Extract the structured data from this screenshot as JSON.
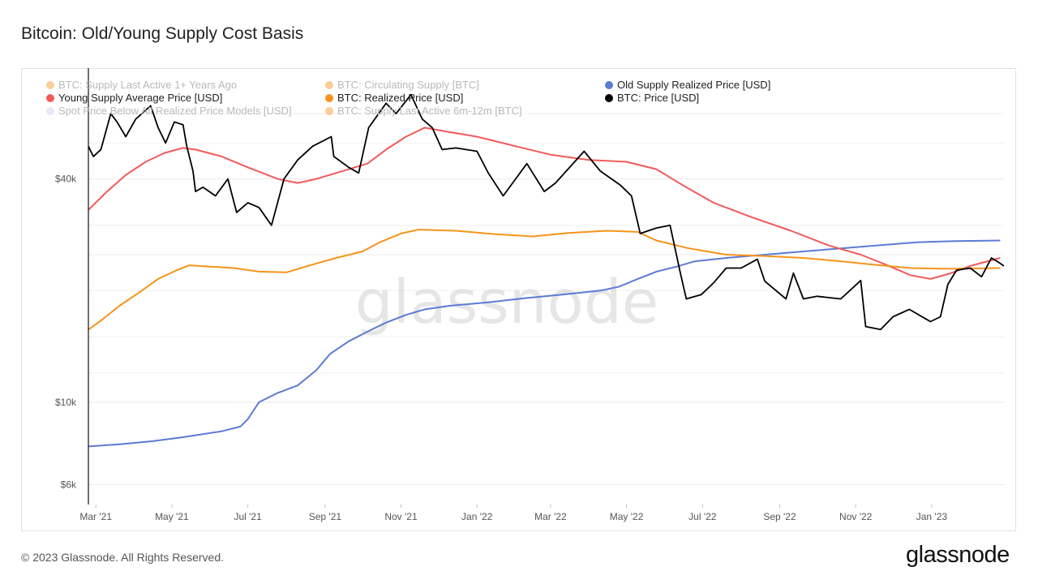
{
  "title": "Bitcoin: Old/Young Supply Cost Basis",
  "footer": {
    "copyright": "© 2023 Glassnode. All Rights Reserved.",
    "brand": "glassnode"
  },
  "watermark": "glassnode",
  "legend": [
    {
      "label": "BTC: Supply Last Active 1+ Years Ago",
      "color": "#f7931a",
      "active": false
    },
    {
      "label": "BTC: Circulating Supply [BTC]",
      "color": "#f7931a",
      "active": false
    },
    {
      "label": "Old Supply Realized Price [USD]",
      "color": "#5b7bd5",
      "active": true
    },
    {
      "label": "Young Supply Average Price [USD]",
      "color": "#f25a5a",
      "active": true
    },
    {
      "label": "BTC: Realized Price [USD]",
      "color": "#f7931a",
      "active": true
    },
    {
      "label": "BTC: Price [USD]",
      "color": "#000000",
      "active": true
    },
    {
      "label": "Spot Price Below All Realized Price Models [USD]",
      "color": "#d7c8f3",
      "active": false
    },
    {
      "label": "BTC: Supply Last Active 6m-12m [BTC]",
      "color": "#f7931a",
      "active": false
    }
  ],
  "chart_data": {
    "type": "line",
    "title": "Bitcoin: Old/Young Supply Cost Basis",
    "yscale": "log",
    "ylim": [
      5300,
      78000
    ],
    "xlim": [
      "2021-02-23",
      "2023-02-28"
    ],
    "yticks": [
      {
        "value": 6000,
        "label": "$6k"
      },
      {
        "value": 10000,
        "label": "$10k"
      },
      {
        "value": 40000,
        "label": "$40k"
      }
    ],
    "xticks": [
      {
        "date": "2021-03-01",
        "label": "Mar '21"
      },
      {
        "date": "2021-05-01",
        "label": "May '21"
      },
      {
        "date": "2021-07-01",
        "label": "Jul '21"
      },
      {
        "date": "2021-09-01",
        "label": "Sep '21"
      },
      {
        "date": "2021-11-01",
        "label": "Nov '21"
      },
      {
        "date": "2022-01-01",
        "label": "Jan '22"
      },
      {
        "date": "2022-03-01",
        "label": "Mar '22"
      },
      {
        "date": "2022-05-01",
        "label": "May '22"
      },
      {
        "date": "2022-07-01",
        "label": "Jul '22"
      },
      {
        "date": "2022-09-01",
        "label": "Sep '22"
      },
      {
        "date": "2022-11-01",
        "label": "Nov '22"
      },
      {
        "date": "2023-01-01",
        "label": "Jan '23"
      }
    ],
    "series": [
      {
        "name": "Old Supply Realized Price [USD]",
        "color": "#5b7bd5",
        "points": [
          [
            "2021-02-23",
            7600
          ],
          [
            "2021-03-20",
            7700
          ],
          [
            "2021-04-15",
            7850
          ],
          [
            "2021-05-10",
            8050
          ],
          [
            "2021-06-10",
            8350
          ],
          [
            "2021-06-25",
            8600
          ],
          [
            "2021-07-01",
            9000
          ],
          [
            "2021-07-10",
            10000
          ],
          [
            "2021-07-25",
            10600
          ],
          [
            "2021-08-10",
            11100
          ],
          [
            "2021-08-25",
            12200
          ],
          [
            "2021-09-05",
            13500
          ],
          [
            "2021-09-20",
            14600
          ],
          [
            "2021-10-05",
            15500
          ],
          [
            "2021-10-20",
            16400
          ],
          [
            "2021-11-05",
            17200
          ],
          [
            "2021-11-20",
            17800
          ],
          [
            "2021-12-10",
            18200
          ],
          [
            "2022-01-10",
            18600
          ],
          [
            "2022-02-10",
            19100
          ],
          [
            "2022-03-10",
            19500
          ],
          [
            "2022-04-10",
            20000
          ],
          [
            "2022-04-25",
            20500
          ],
          [
            "2022-05-10",
            21500
          ],
          [
            "2022-05-25",
            22500
          ],
          [
            "2022-06-10",
            23200
          ],
          [
            "2022-06-25",
            24000
          ],
          [
            "2022-07-20",
            24500
          ],
          [
            "2022-08-20",
            25000
          ],
          [
            "2022-09-20",
            25500
          ],
          [
            "2022-10-20",
            26000
          ],
          [
            "2022-11-20",
            26500
          ],
          [
            "2022-12-20",
            27000
          ],
          [
            "2023-01-20",
            27200
          ],
          [
            "2023-02-25",
            27300
          ]
        ]
      },
      {
        "name": "Young Supply Average Price [USD]",
        "color": "#f25a5a",
        "points": [
          [
            "2021-02-23",
            33000
          ],
          [
            "2021-03-10",
            37000
          ],
          [
            "2021-03-25",
            41000
          ],
          [
            "2021-04-10",
            44500
          ],
          [
            "2021-04-25",
            47000
          ],
          [
            "2021-05-10",
            48500
          ],
          [
            "2021-05-20",
            48000
          ],
          [
            "2021-06-10",
            46000
          ],
          [
            "2021-07-01",
            43000
          ],
          [
            "2021-07-25",
            40000
          ],
          [
            "2021-08-10",
            39000
          ],
          [
            "2021-08-25",
            40000
          ],
          [
            "2021-09-15",
            42000
          ],
          [
            "2021-10-05",
            44000
          ],
          [
            "2021-10-20",
            48000
          ],
          [
            "2021-11-05",
            52000
          ],
          [
            "2021-11-20",
            55000
          ],
          [
            "2021-12-10",
            53500
          ],
          [
            "2022-01-01",
            52000
          ],
          [
            "2022-02-01",
            49000
          ],
          [
            "2022-03-01",
            46500
          ],
          [
            "2022-04-01",
            45000
          ],
          [
            "2022-05-01",
            44500
          ],
          [
            "2022-05-25",
            42500
          ],
          [
            "2022-06-15",
            38500
          ],
          [
            "2022-07-10",
            34500
          ],
          [
            "2022-08-10",
            31500
          ],
          [
            "2022-09-10",
            29000
          ],
          [
            "2022-10-10",
            26500
          ],
          [
            "2022-11-05",
            25000
          ],
          [
            "2022-11-25",
            23500
          ],
          [
            "2022-12-15",
            22000
          ],
          [
            "2022-12-31",
            21500
          ],
          [
            "2023-01-15",
            22200
          ],
          [
            "2023-02-01",
            23300
          ],
          [
            "2023-02-25",
            24500
          ]
        ]
      },
      {
        "name": "BTC: Realized Price [USD]",
        "color": "#f7931a",
        "points": [
          [
            "2021-02-23",
            15700
          ],
          [
            "2021-03-05",
            16600
          ],
          [
            "2021-03-20",
            18200
          ],
          [
            "2021-04-05",
            19800
          ],
          [
            "2021-04-20",
            21500
          ],
          [
            "2021-05-05",
            22700
          ],
          [
            "2021-05-15",
            23400
          ],
          [
            "2021-06-01",
            23200
          ],
          [
            "2021-06-20",
            23000
          ],
          [
            "2021-07-10",
            22500
          ],
          [
            "2021-08-01",
            22400
          ],
          [
            "2021-08-20",
            23400
          ],
          [
            "2021-09-10",
            24500
          ],
          [
            "2021-10-01",
            25500
          ],
          [
            "2021-10-15",
            27000
          ],
          [
            "2021-11-01",
            28500
          ],
          [
            "2021-11-15",
            29200
          ],
          [
            "2021-12-15",
            29000
          ],
          [
            "2022-01-15",
            28400
          ],
          [
            "2022-02-15",
            28000
          ],
          [
            "2022-03-15",
            28600
          ],
          [
            "2022-04-15",
            29000
          ],
          [
            "2022-05-10",
            28800
          ],
          [
            "2022-05-25",
            27300
          ],
          [
            "2022-06-20",
            26000
          ],
          [
            "2022-07-20",
            25000
          ],
          [
            "2022-08-20",
            24800
          ],
          [
            "2022-09-20",
            24500
          ],
          [
            "2022-10-20",
            24000
          ],
          [
            "2022-11-15",
            23500
          ],
          [
            "2022-12-15",
            23000
          ],
          [
            "2023-01-15",
            22900
          ],
          [
            "2023-02-25",
            23000
          ]
        ]
      },
      {
        "name": "BTC: Price [USD]",
        "color": "#000000",
        "points": [
          [
            "2021-02-23",
            49000
          ],
          [
            "2021-02-27",
            46000
          ],
          [
            "2021-03-05",
            48000
          ],
          [
            "2021-03-13",
            60000
          ],
          [
            "2021-03-18",
            57000
          ],
          [
            "2021-03-25",
            52000
          ],
          [
            "2021-04-02",
            58000
          ],
          [
            "2021-04-14",
            63000
          ],
          [
            "2021-04-20",
            55000
          ],
          [
            "2021-04-26",
            50000
          ],
          [
            "2021-05-03",
            57000
          ],
          [
            "2021-05-10",
            56000
          ],
          [
            "2021-05-13",
            49000
          ],
          [
            "2021-05-18",
            42000
          ],
          [
            "2021-05-20",
            37000
          ],
          [
            "2021-05-26",
            38000
          ],
          [
            "2021-06-05",
            36000
          ],
          [
            "2021-06-15",
            40000
          ],
          [
            "2021-06-22",
            32500
          ],
          [
            "2021-07-01",
            34500
          ],
          [
            "2021-07-10",
            33500
          ],
          [
            "2021-07-20",
            30000
          ],
          [
            "2021-07-30",
            40000
          ],
          [
            "2021-08-10",
            45000
          ],
          [
            "2021-08-22",
            49000
          ],
          [
            "2021-09-06",
            52000
          ],
          [
            "2021-09-08",
            46000
          ],
          [
            "2021-09-20",
            43000
          ],
          [
            "2021-09-28",
            41500
          ],
          [
            "2021-10-06",
            55000
          ],
          [
            "2021-10-20",
            64000
          ],
          [
            "2021-10-28",
            60000
          ],
          [
            "2021-11-09",
            67500
          ],
          [
            "2021-11-18",
            58000
          ],
          [
            "2021-11-26",
            55000
          ],
          [
            "2021-12-04",
            48000
          ],
          [
            "2021-12-15",
            48500
          ],
          [
            "2022-01-01",
            47500
          ],
          [
            "2022-01-10",
            41500
          ],
          [
            "2022-01-22",
            36000
          ],
          [
            "2022-02-10",
            44000
          ],
          [
            "2022-02-24",
            37000
          ],
          [
            "2022-03-05",
            39000
          ],
          [
            "2022-03-28",
            47500
          ],
          [
            "2022-04-10",
            42000
          ],
          [
            "2022-04-26",
            38500
          ],
          [
            "2022-05-05",
            36000
          ],
          [
            "2022-05-12",
            28500
          ],
          [
            "2022-05-25",
            29500
          ],
          [
            "2022-06-05",
            30000
          ],
          [
            "2022-06-13",
            22500
          ],
          [
            "2022-06-18",
            19000
          ],
          [
            "2022-06-30",
            19500
          ],
          [
            "2022-07-10",
            21000
          ],
          [
            "2022-07-20",
            23000
          ],
          [
            "2022-08-01",
            23000
          ],
          [
            "2022-08-14",
            24300
          ],
          [
            "2022-08-20",
            21200
          ],
          [
            "2022-09-06",
            19000
          ],
          [
            "2022-09-12",
            22300
          ],
          [
            "2022-09-20",
            19000
          ],
          [
            "2022-10-01",
            19300
          ],
          [
            "2022-10-20",
            19000
          ],
          [
            "2022-11-05",
            21300
          ],
          [
            "2022-11-09",
            16000
          ],
          [
            "2022-11-21",
            15700
          ],
          [
            "2022-12-01",
            17000
          ],
          [
            "2022-12-14",
            17800
          ],
          [
            "2022-12-31",
            16500
          ],
          [
            "2023-01-08",
            17000
          ],
          [
            "2023-01-14",
            20800
          ],
          [
            "2023-01-21",
            22700
          ],
          [
            "2023-02-01",
            23000
          ],
          [
            "2023-02-10",
            21800
          ],
          [
            "2023-02-18",
            24500
          ],
          [
            "2023-02-24",
            23800
          ],
          [
            "2023-02-28",
            23300
          ]
        ]
      }
    ]
  }
}
